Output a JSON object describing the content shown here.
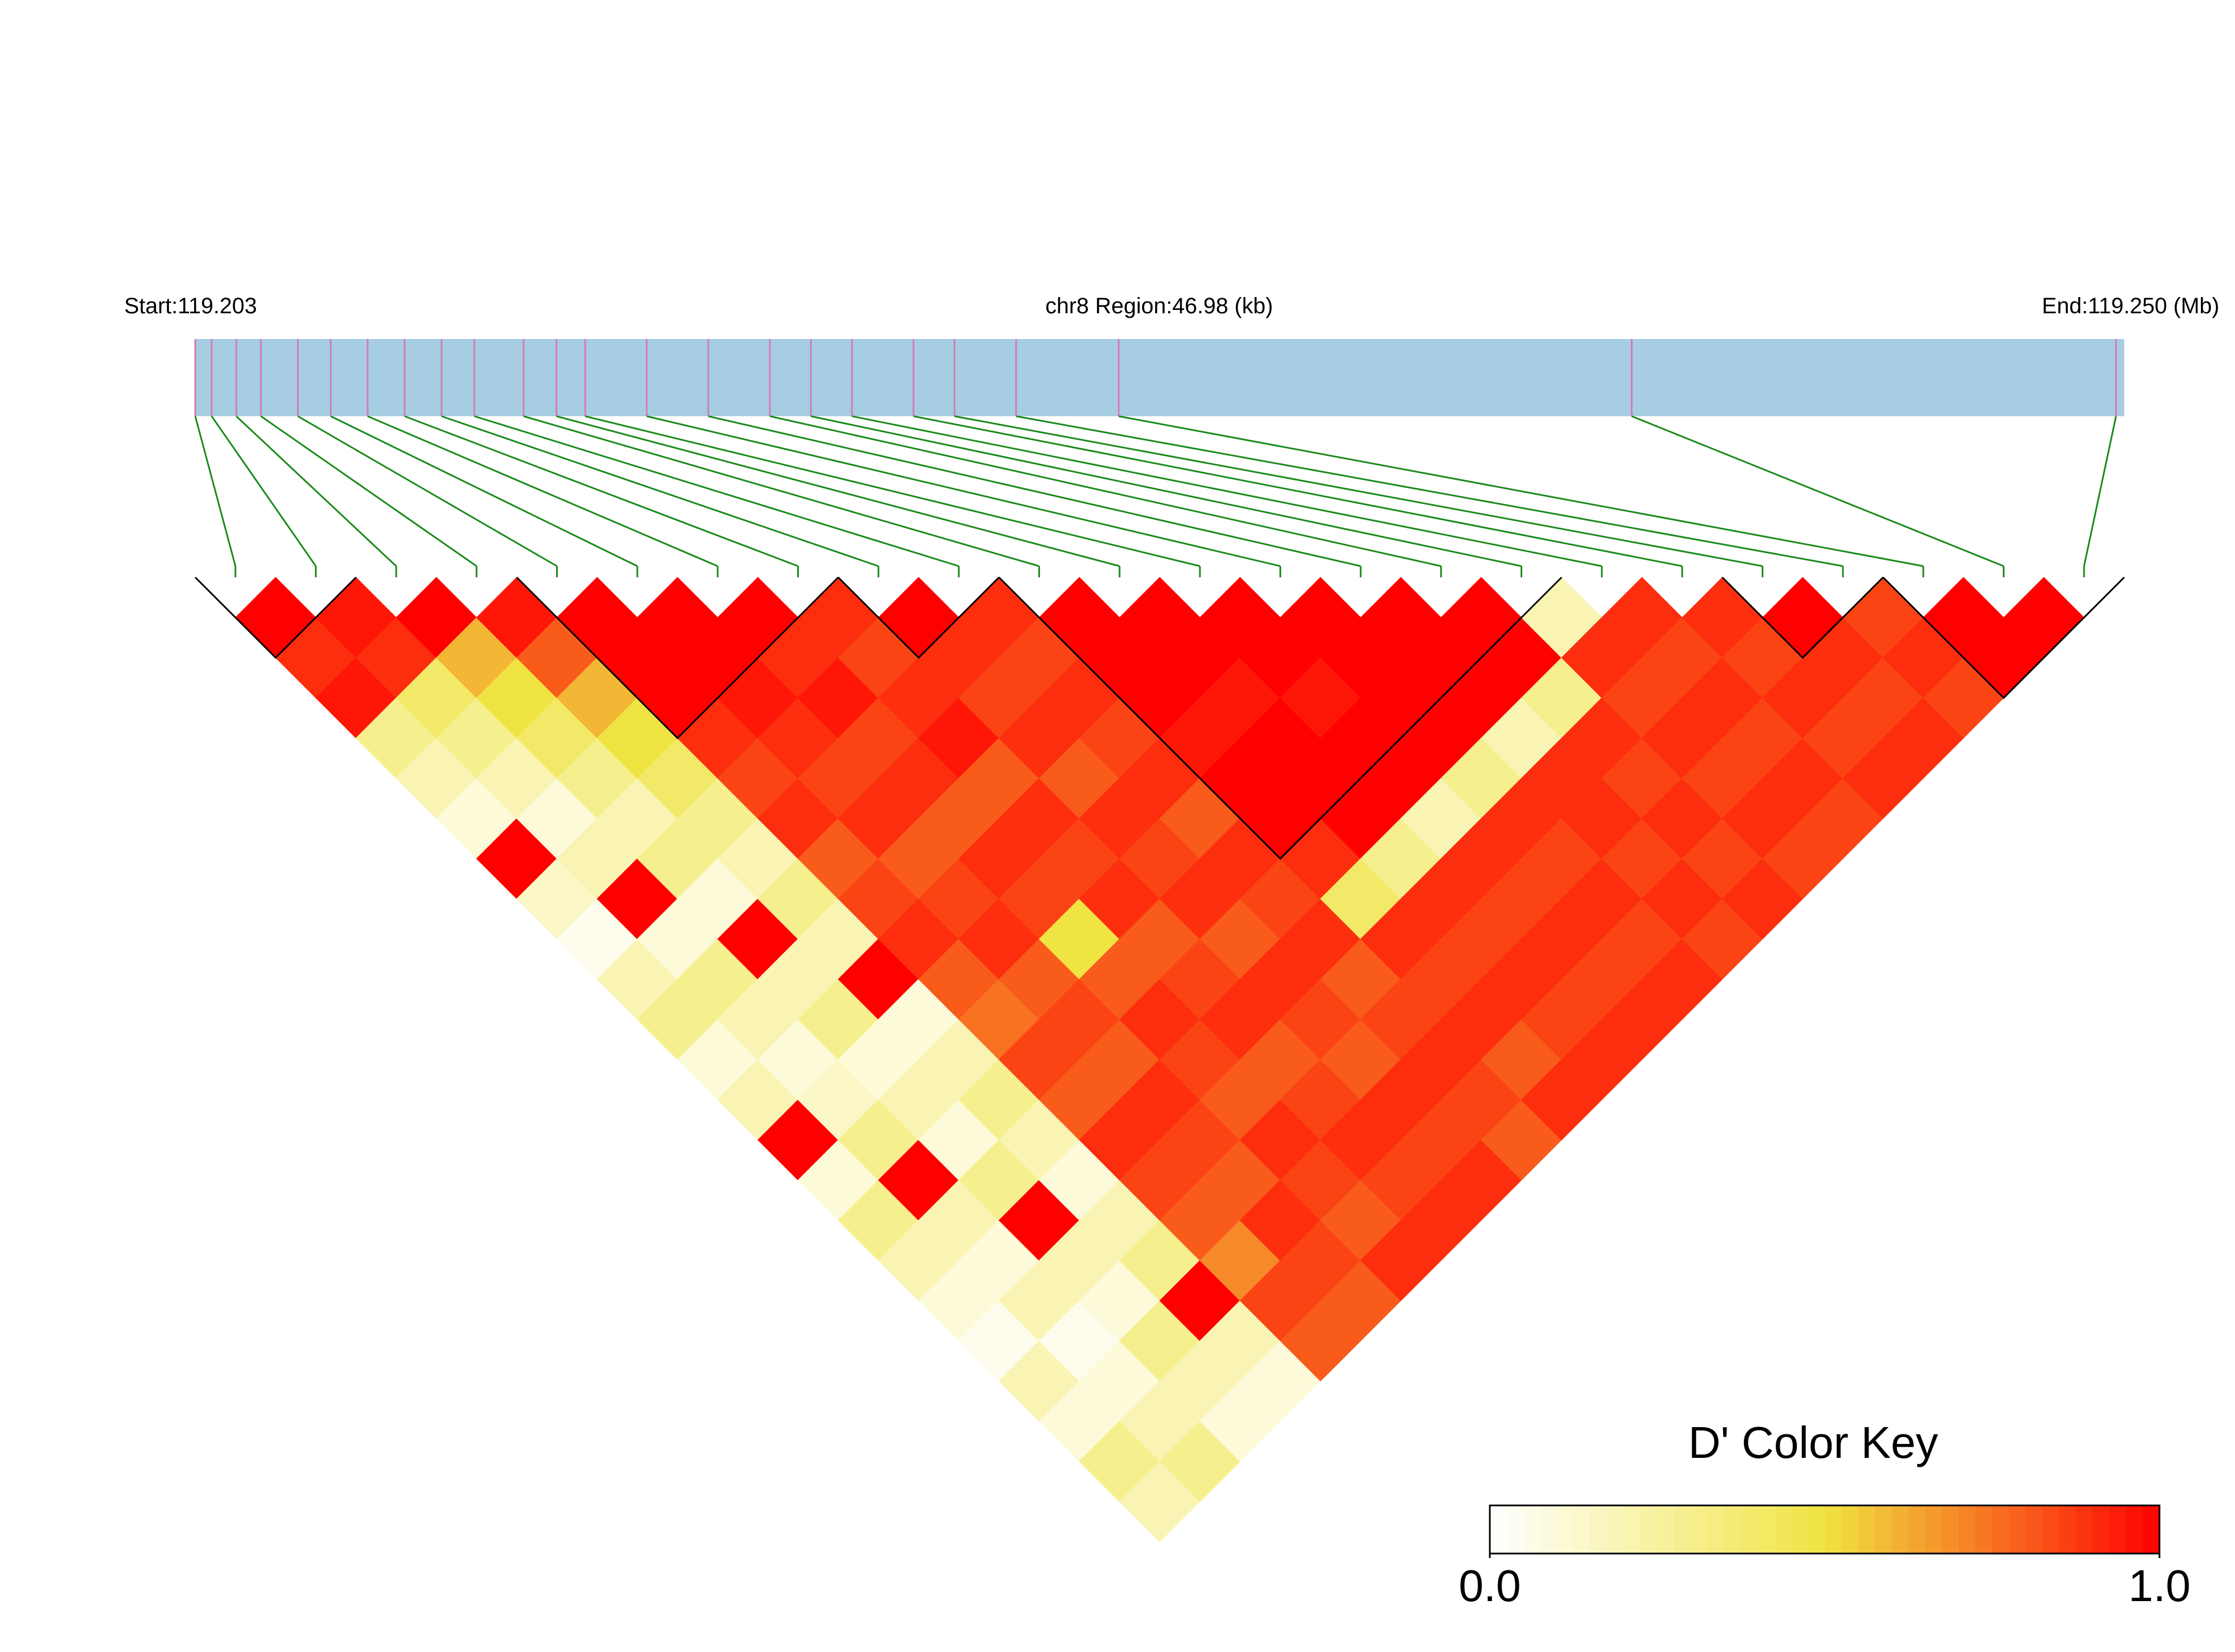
{
  "chart_data": {
    "type": "ld_heatmap",
    "start_label": "Start:119.203",
    "region_label": "chr8 Region:46.98 (kb)",
    "end_label": "End:119.250 (Mb)",
    "xlim": [
      119.203,
      119.25
    ],
    "snp_positions": [
      119.203,
      119.2034,
      119.204,
      119.2046,
      119.2055,
      119.2063,
      119.2072,
      119.2081,
      119.209,
      119.2098,
      119.211,
      119.2118,
      119.2125,
      119.214,
      119.2155,
      119.217,
      119.218,
      119.219,
      119.2205,
      119.2215,
      119.223,
      119.2255,
      119.238,
      119.2498
    ],
    "dprime": [
      [
        1.0,
        0.9,
        0.95,
        0.3,
        0.2,
        0.1,
        1.0,
        0.15,
        0.05,
        0.2,
        0.3,
        0.1,
        0.2,
        1.0,
        0.1,
        0.3,
        0.2,
        0.1,
        0.05,
        0.2,
        0.1,
        0.3,
        0.2
      ],
      [
        0.95,
        0.9,
        0.4,
        0.3,
        0.2,
        0.1,
        0.2,
        1.0,
        0.1,
        0.3,
        0.2,
        0.1,
        0.15,
        0.3,
        1.0,
        0.2,
        0.1,
        0.2,
        0.05,
        0.1,
        0.2,
        0.3
      ],
      [
        1.0,
        0.6,
        0.5,
        0.4,
        0.3,
        0.2,
        0.3,
        0.1,
        1.0,
        0.2,
        0.3,
        0.1,
        0.2,
        0.1,
        0.3,
        1.0,
        0.2,
        0.1,
        0.3,
        0.2,
        0.1
      ],
      [
        0.95,
        0.8,
        0.6,
        0.5,
        0.4,
        0.3,
        0.2,
        0.3,
        0.2,
        1.0,
        0.1,
        0.2,
        0.3,
        0.2,
        0.1,
        0.2,
        0.3,
        1.0,
        0.2,
        0.1
      ],
      [
        1,
        1,
        1,
        0.9,
        0.85,
        0.9,
        0.8,
        0.85,
        0.9,
        0.8,
        0.75,
        0.85,
        0.8,
        0.9,
        0.85,
        0.8,
        0.7,
        0.85,
        0.8
      ],
      [
        1,
        1,
        0.95,
        0.9,
        0.85,
        0.9,
        0.8,
        0.85,
        0.9,
        0.8,
        0.85,
        0.8,
        0.9,
        0.85,
        0.8,
        0.9,
        0.85,
        0.8
      ],
      [
        1,
        0.9,
        0.95,
        0.85,
        0.9,
        0.8,
        0.9,
        0.85,
        0.5,
        0.8,
        0.9,
        0.85,
        0.8,
        0.9,
        0.85,
        0.8,
        0.9
      ],
      [
        0.9,
        0.85,
        0.9,
        0.95,
        0.8,
        0.9,
        0.85,
        0.9,
        0.8,
        0.85,
        0.9,
        0.8,
        0.85,
        0.9,
        0.85,
        0.9
      ],
      [
        1,
        0.9,
        0.85,
        0.9,
        0.8,
        0.9,
        0.85,
        0.9,
        0.8,
        0.9,
        0.85,
        0.8,
        0.9,
        0.85,
        0.9
      ],
      [
        0.9,
        0.85,
        0.9,
        0.85,
        0.9,
        0.8,
        0.9,
        0.85,
        0.9,
        0.8,
        0.85,
        0.9,
        0.85,
        0.8
      ],
      [
        1,
        1,
        1,
        0.95,
        1,
        1,
        0.9,
        0.4,
        0.9,
        0.85,
        0.9,
        0.8,
        0.9
      ],
      [
        1,
        1,
        0.95,
        1,
        1,
        1,
        0.3,
        0.9,
        0.85,
        0.9,
        0.85,
        0.9
      ],
      [
        1,
        1,
        0.95,
        1,
        1,
        0.2,
        0.9,
        0.85,
        0.9,
        0.85,
        0.9
      ],
      [
        1,
        1,
        1,
        1,
        0.3,
        0.9,
        0.85,
        0.9,
        0.85,
        0.9
      ],
      [
        1,
        1,
        1,
        0.2,
        0.9,
        0.9,
        0.85,
        0.9,
        0.85
      ],
      [
        1,
        1,
        0.3,
        0.9,
        0.85,
        0.9,
        0.85,
        0.9
      ],
      [
        0.2,
        0.9,
        0.85,
        0.9,
        0.85,
        0.9,
        0.85
      ],
      [
        0.9,
        0.85,
        0.9,
        0.85,
        0.9,
        0.85
      ],
      [
        0.9,
        0.85,
        0.9,
        0.85,
        0.9
      ],
      [
        1,
        0.9,
        0.85,
        0.9
      ],
      [
        0.85,
        0.9,
        0.85
      ],
      [
        1,
        1
      ],
      [
        1
      ]
    ],
    "blocks": [
      [
        0,
        1
      ],
      [
        4,
        7
      ],
      [
        8,
        9
      ],
      [
        10,
        16
      ],
      [
        19,
        20
      ],
      [
        21,
        23
      ]
    ],
    "colors": [
      "#ffffff",
      "#f0e442",
      "#ff0000"
    ],
    "colorbar": {
      "title": "D' Color Key",
      "lim": [
        0,
        1
      ],
      "ticks": [
        {
          "value": 0,
          "label": "0.0"
        },
        {
          "value": 1,
          "label": "1.0"
        }
      ]
    }
  }
}
